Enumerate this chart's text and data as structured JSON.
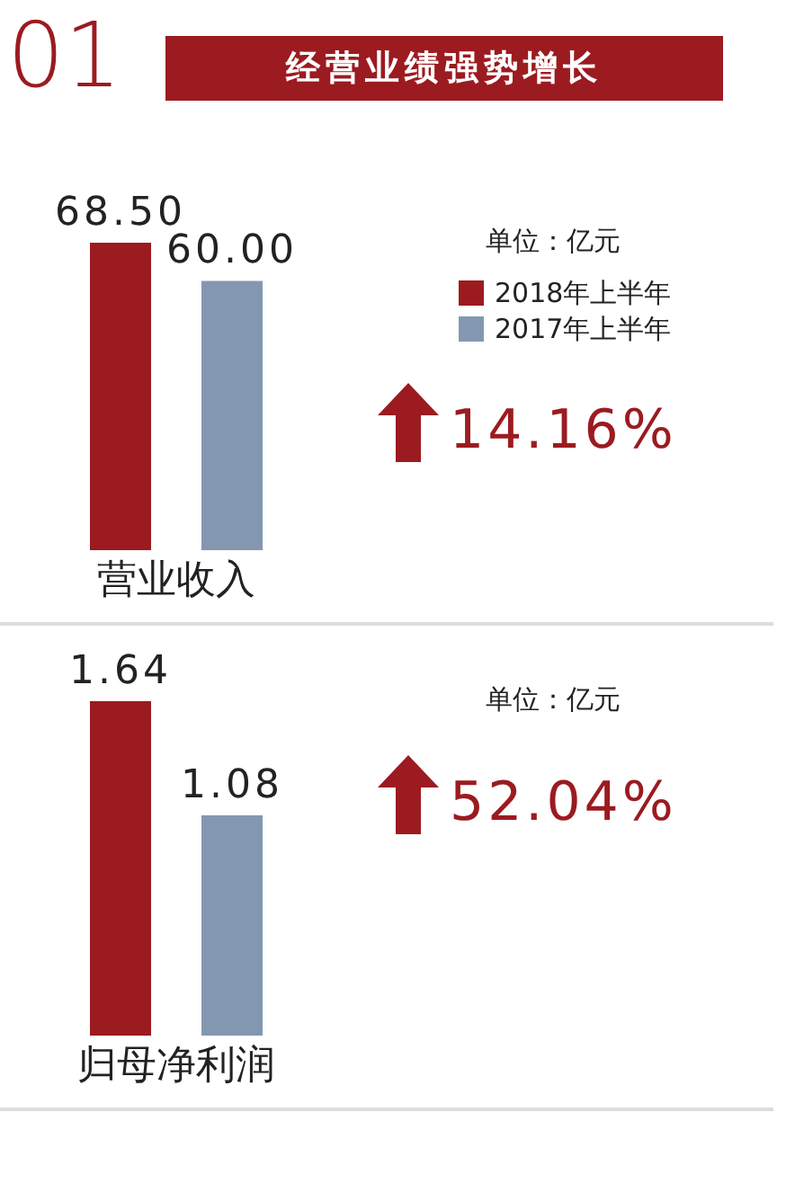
{
  "chart_data": [
    {
      "type": "bar",
      "subtitle": "01",
      "title": "经营业绩强势增长",
      "categories": [
        "营业收入"
      ],
      "series": [
        {
          "name": "2018年上半年",
          "color": "#9b1b20",
          "values": [
            68.5
          ],
          "value_labels": [
            "68.50"
          ]
        },
        {
          "name": "2017年上半年",
          "color": "#8497b0",
          "values": [
            60.0
          ],
          "value_labels": [
            "60.00"
          ]
        }
      ],
      "legend": "top right",
      "annotations": [
        "单位：亿元",
        "14.16%"
      ]
    },
    {
      "type": "bar",
      "categories": [
        "归母净利润"
      ],
      "series": [
        {
          "color": "#9b1b20",
          "values": [
            1.64
          ],
          "value_labels": [
            "1.64"
          ]
        },
        {
          "color": "#8497b0",
          "values": [
            1.08
          ],
          "value_labels": [
            "1.08"
          ]
        }
      ],
      "annotations": [
        "单位：亿元",
        "52.04%"
      ]
    }
  ]
}
